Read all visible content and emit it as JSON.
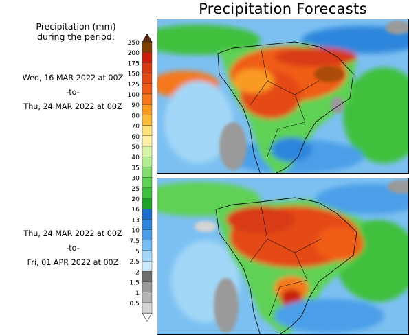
{
  "title": "Precipitation Forecasts",
  "legend": {
    "title_line1": "Precipitation (mm)",
    "title_line2": "during the period:",
    "levels": [
      "250",
      "200",
      "175",
      "150",
      "125",
      "100",
      "90",
      "80",
      "70",
      "60",
      "50",
      "40",
      "35",
      "30",
      "25",
      "20",
      "16",
      "13",
      "10",
      "7.5",
      "5",
      "2.5",
      "2",
      "1.5",
      "1",
      "0.5"
    ],
    "colors": [
      "#7f3f00",
      "#c8200c",
      "#d83a12",
      "#e54a16",
      "#f05d18",
      "#f5791c",
      "#f99a22",
      "#fbba3a",
      "#fde27c",
      "#fff0a8",
      "#d6f3a6",
      "#b2eb90",
      "#83de72",
      "#5fd154",
      "#3fc03e",
      "#1ea328",
      "#1c6fc9",
      "#2f86dc",
      "#4c9fe8",
      "#75bdf2",
      "#a2d7f7",
      "#cbeafb",
      "#6e6e6e",
      "#9a9a9a",
      "#b6b6b6",
      "#d3d3d3"
    ]
  },
  "periods": [
    {
      "start": "Wed, 16 MAR 2022 at 00Z",
      "sep": "-to-",
      "end": "Thu, 24 MAR 2022 at 00Z"
    },
    {
      "start": "Thu, 24 MAR 2022 at 00Z",
      "sep": "-to-",
      "end": "Fri, 01 APR 2022 at 00Z"
    }
  ]
}
